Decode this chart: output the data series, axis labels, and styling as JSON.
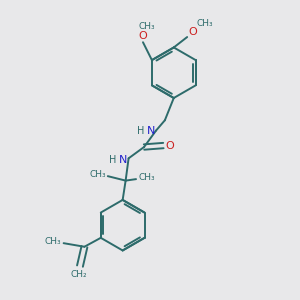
{
  "bg_color": "#e8e8ea",
  "bond_color": "#2d6b6b",
  "N_color": "#2222cc",
  "O_color": "#cc2222",
  "figsize": [
    3.0,
    3.0
  ],
  "dpi": 100,
  "xlim": [
    0,
    10
  ],
  "ylim": [
    0,
    10
  ]
}
